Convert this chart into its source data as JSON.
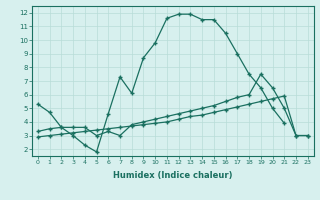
{
  "xlabel": "Humidex (Indice chaleur)",
  "bg_color": "#d7f0ee",
  "line_color": "#1a7060",
  "grid_color": "#b8ddd8",
  "xlim": [
    -0.5,
    23.5
  ],
  "ylim": [
    1.5,
    12.5
  ],
  "xticks": [
    0,
    1,
    2,
    3,
    4,
    5,
    6,
    7,
    8,
    9,
    10,
    11,
    12,
    13,
    14,
    15,
    16,
    17,
    18,
    19,
    20,
    21,
    22,
    23
  ],
  "yticks": [
    2,
    3,
    4,
    5,
    6,
    7,
    8,
    9,
    10,
    11,
    12
  ],
  "line1_x": [
    0,
    1,
    2,
    3,
    4,
    5,
    6,
    7,
    8,
    9,
    10,
    11,
    12,
    13,
    14,
    15,
    16,
    17,
    18,
    19,
    20,
    21
  ],
  "line1_y": [
    5.3,
    4.7,
    3.6,
    3.0,
    2.3,
    1.8,
    4.6,
    7.3,
    6.1,
    8.7,
    9.8,
    11.6,
    11.9,
    11.9,
    11.5,
    11.5,
    10.5,
    9.0,
    7.5,
    6.5,
    5.0,
    3.9
  ],
  "line2_x": [
    0,
    1,
    2,
    3,
    4,
    5,
    6,
    7,
    8,
    9,
    10,
    11,
    12,
    13,
    14,
    15,
    16,
    17,
    18,
    19,
    20,
    21,
    22,
    23
  ],
  "line2_y": [
    3.3,
    3.5,
    3.6,
    3.6,
    3.6,
    3.0,
    3.3,
    3.0,
    3.8,
    4.0,
    4.2,
    4.4,
    4.6,
    4.8,
    5.0,
    5.2,
    5.5,
    5.8,
    6.0,
    7.5,
    6.5,
    5.0,
    3.0,
    3.0
  ],
  "line3_x": [
    0,
    1,
    2,
    3,
    4,
    5,
    6,
    7,
    8,
    9,
    10,
    11,
    12,
    13,
    14,
    15,
    16,
    17,
    18,
    19,
    20,
    21,
    22,
    23
  ],
  "line3_y": [
    2.9,
    3.0,
    3.1,
    3.2,
    3.3,
    3.4,
    3.5,
    3.6,
    3.7,
    3.8,
    3.9,
    4.0,
    4.2,
    4.4,
    4.5,
    4.7,
    4.9,
    5.1,
    5.3,
    5.5,
    5.7,
    5.9,
    3.0,
    3.0
  ]
}
